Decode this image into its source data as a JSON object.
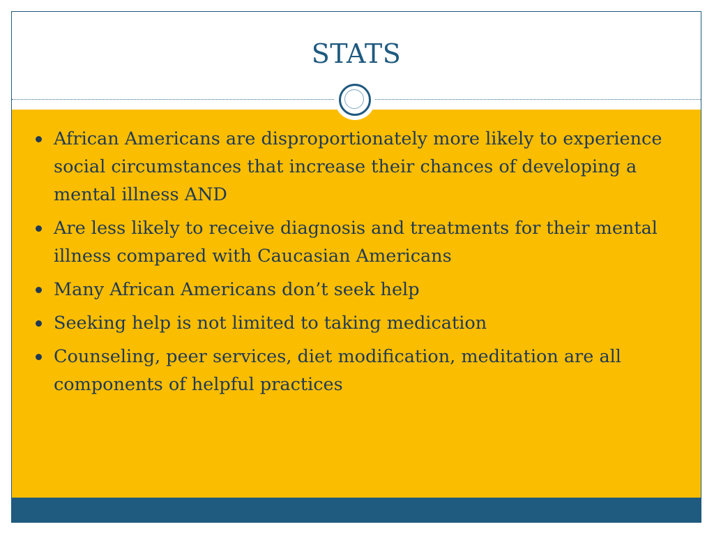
{
  "slide": {
    "title": "STATS",
    "bullets": [
      "African Americans are disproportionately more likely to experience social circumstances that increase their chances of developing a mental illness AND",
      "Are less likely to receive diagnosis and treatments for their mental illness compared with Caucasian Americans",
      "Many African Americans don’t seek help",
      "Seeking help is not limited to taking medication",
      "Counseling, peer services, diet modification, meditation are all components of helpful practices"
    ]
  },
  "colors": {
    "title_text": "#1f5a7f",
    "content_background": "#fbbd00",
    "footer_bar": "#1f5a7f",
    "body_text": "#1f3a55"
  }
}
